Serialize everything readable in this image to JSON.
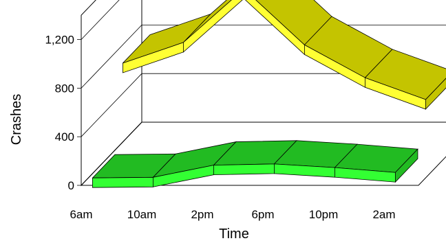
{
  "chart_data": {
    "type": "line",
    "style": "3d-ribbon",
    "xlabel": "Time",
    "ylabel": "Crashes",
    "categories": [
      "6am",
      "10am",
      "2pm",
      "6pm",
      "10pm",
      "2am"
    ],
    "y_ticks": [
      "0",
      "400",
      "800",
      "1,200"
    ],
    "ylim": [
      0,
      1400
    ],
    "grid": true,
    "legend": "none",
    "series": [
      {
        "values": [
          720,
          890,
          1330,
          870,
          600,
          420
        ],
        "color": "#ffff33",
        "shade": "#c4c400"
      },
      {
        "values": [
          35,
          40,
          140,
          150,
          120,
          80
        ],
        "color": "#33ff33",
        "shade": "#22bb22"
      }
    ]
  }
}
